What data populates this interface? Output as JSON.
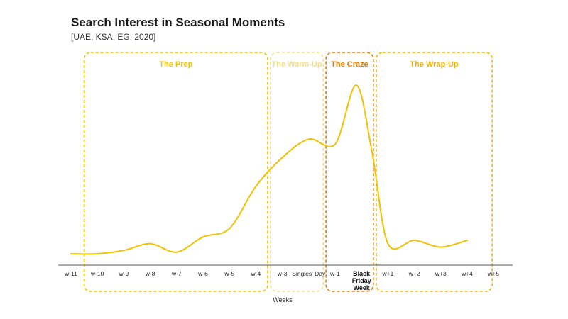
{
  "chart_data": {
    "type": "line",
    "title": "Search Interest in Seasonal Moments",
    "subtitle": "[UAE, KSA, EG, 2020]",
    "xlabel": "Weeks",
    "ylabel": "",
    "categories": [
      "w-11",
      "w-10",
      "w-9",
      "w-8",
      "w-7",
      "w-6",
      "w-5",
      "w-4",
      "w-3",
      "Singles' Day",
      "w-1",
      "Black Friday Week",
      "w+1",
      "w+2",
      "w+3",
      "w+4",
      "w+5"
    ],
    "ylim": [
      0,
      100
    ],
    "grid": false,
    "series": [
      {
        "color": "#F2C100",
        "points": [
          {
            "x": -11,
            "y": 0
          },
          {
            "x": -10,
            "y": 0
          },
          {
            "x": -9,
            "y": 2
          },
          {
            "x": -8,
            "y": 6
          },
          {
            "x": -7,
            "y": 1
          },
          {
            "x": -6,
            "y": 10
          },
          {
            "x": -5,
            "y": 15
          },
          {
            "x": -4,
            "y": 40
          },
          {
            "x": -3,
            "y": 57
          },
          {
            "x": -2,
            "y": 68
          },
          {
            "x": -1,
            "y": 65
          },
          {
            "x": -0.2,
            "y": 100
          },
          {
            "x": 0.4,
            "y": 60
          },
          {
            "x": 1,
            "y": 6
          },
          {
            "x": 2,
            "y": 8
          },
          {
            "x": 3,
            "y": 4
          },
          {
            "x": 4,
            "y": 8
          }
        ]
      }
    ],
    "phases": [
      {
        "label": "The Prep",
        "from": -10.5,
        "to": -3.5,
        "color": "#F2C100",
        "label_color": "#F2C100"
      },
      {
        "label": "The Warm-Up",
        "from": -3.5,
        "to": -1.4,
        "color": "#F6DE8A",
        "label_color": "#F6DE8A"
      },
      {
        "label": "The Craze",
        "from": -1.4,
        "to": 0.5,
        "color": "#E07B00",
        "label_color": "#E07B00"
      },
      {
        "label": "The Wrap-Up",
        "from": 0.5,
        "to": 5.0,
        "color": "#F2B300",
        "label_color": "#F2B300"
      }
    ]
  }
}
